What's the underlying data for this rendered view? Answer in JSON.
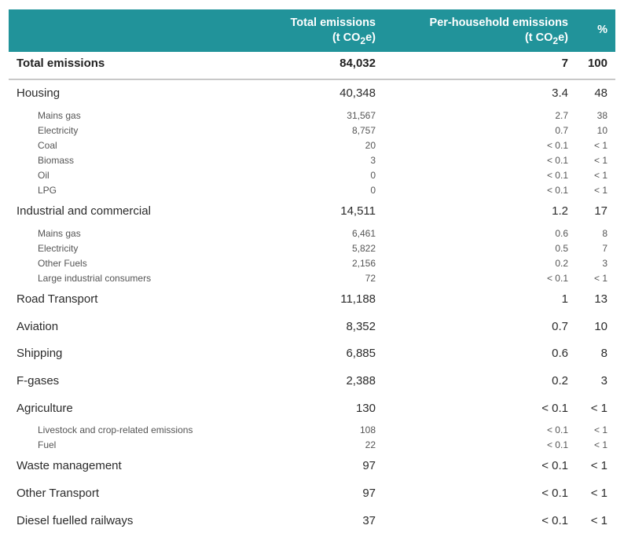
{
  "header": {
    "col_total_line1": "Total emissions",
    "col_total_line2": "(t CO",
    "col_total_sub": "2",
    "col_total_end": "e)",
    "col_ph_line1": "Per-household emissions",
    "col_ph_line2": "(t CO",
    "col_ph_sub": "2",
    "col_ph_end": "e)",
    "col_pct": "%"
  },
  "rows": [
    {
      "kind": "total",
      "label": "Total emissions",
      "total": "84,032",
      "per_household": "7",
      "pct": "100"
    },
    {
      "kind": "main",
      "label": "Housing",
      "total": "40,348",
      "per_household": "3.4",
      "pct": "48"
    },
    {
      "kind": "sub",
      "label": "Mains gas",
      "total": "31,567",
      "per_household": "2.7",
      "pct": "38"
    },
    {
      "kind": "sub",
      "label": "Electricity",
      "total": "8,757",
      "per_household": "0.7",
      "pct": "10"
    },
    {
      "kind": "sub",
      "label": "Coal",
      "total": "20",
      "per_household": "< 0.1",
      "pct": "< 1"
    },
    {
      "kind": "sub",
      "label": "Biomass",
      "total": "3",
      "per_household": "< 0.1",
      "pct": "< 1"
    },
    {
      "kind": "sub",
      "label": "Oil",
      "total": "0",
      "per_household": "< 0.1",
      "pct": "< 1"
    },
    {
      "kind": "sub",
      "label": "LPG",
      "total": "0",
      "per_household": "< 0.1",
      "pct": "< 1"
    },
    {
      "kind": "main",
      "label": "Industrial and commercial",
      "total": "14,511",
      "per_household": "1.2",
      "pct": "17"
    },
    {
      "kind": "sub",
      "label": "Mains gas",
      "total": "6,461",
      "per_household": "0.6",
      "pct": "8"
    },
    {
      "kind": "sub",
      "label": "Electricity",
      "total": "5,822",
      "per_household": "0.5",
      "pct": "7"
    },
    {
      "kind": "sub",
      "label": "Other Fuels",
      "total": "2,156",
      "per_household": "0.2",
      "pct": "3"
    },
    {
      "kind": "sub",
      "label": "Large industrial consumers",
      "total": "72",
      "per_household": "< 0.1",
      "pct": "< 1"
    },
    {
      "kind": "main",
      "label": "Road Transport",
      "total": "11,188",
      "per_household": "1",
      "pct": "13"
    },
    {
      "kind": "main",
      "label": "Aviation",
      "total": "8,352",
      "per_household": "0.7",
      "pct": "10"
    },
    {
      "kind": "main",
      "label": "Shipping",
      "total": "6,885",
      "per_household": "0.6",
      "pct": "8"
    },
    {
      "kind": "main",
      "label": "F-gases",
      "total": "2,388",
      "per_household": "0.2",
      "pct": "3"
    },
    {
      "kind": "main",
      "label": "Agriculture",
      "total": "130",
      "per_household": "< 0.1",
      "pct": "< 1"
    },
    {
      "kind": "sub",
      "label": "Livestock and crop-related emissions",
      "total": "108",
      "per_household": "< 0.1",
      "pct": "< 1"
    },
    {
      "kind": "sub",
      "label": "Fuel",
      "total": "22",
      "per_household": "< 0.1",
      "pct": "< 1"
    },
    {
      "kind": "main",
      "label": "Waste management",
      "total": "97",
      "per_household": "< 0.1",
      "pct": "< 1"
    },
    {
      "kind": "main",
      "label": "Other Transport",
      "total": "97",
      "per_household": "< 0.1",
      "pct": "< 1"
    },
    {
      "kind": "main",
      "label": "Diesel fuelled railways",
      "total": "37",
      "per_household": "< 0.1",
      "pct": "< 1"
    }
  ]
}
